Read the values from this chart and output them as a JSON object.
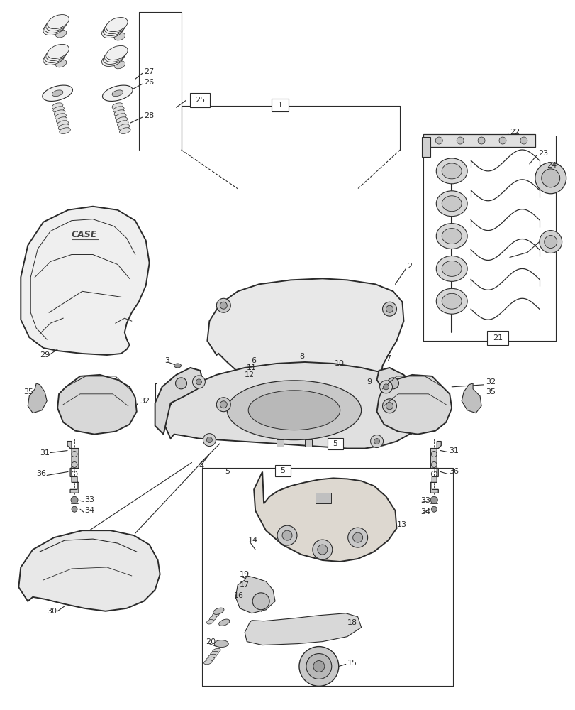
{
  "bg_color": "#ffffff",
  "fig_width": 8.12,
  "fig_height": 10.0,
  "dpi": 100,
  "lc": "#2a2a2a",
  "lw_main": 1.4,
  "lw_thin": 0.8,
  "lw_bold": 2.0
}
